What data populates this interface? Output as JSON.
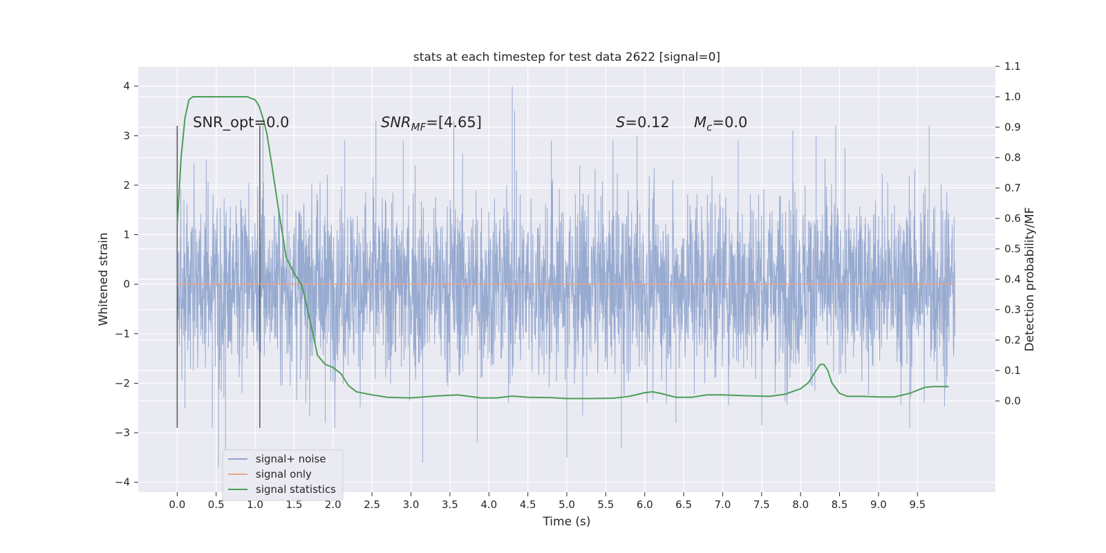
{
  "chart_data": {
    "type": "line",
    "title": "stats at each timestep for test data 2622 [signal=0]",
    "xlabel": "Time (s)",
    "ylabel_left": "Whitened strain",
    "ylabel_right": "Detection probability/MF",
    "xlim": [
      -0.5,
      10.5
    ],
    "ylim_left": [
      -4.2,
      4.4
    ],
    "ylim_right": [
      -0.3,
      1.1
    ],
    "x_ticks": [
      0.0,
      0.5,
      1.0,
      1.5,
      2.0,
      2.5,
      3.0,
      3.5,
      4.0,
      4.5,
      5.0,
      5.5,
      6.0,
      6.5,
      7.0,
      7.5,
      8.0,
      8.5,
      9.0,
      9.5
    ],
    "x_tick_labels": [
      "0.0",
      "0.5",
      "1.0",
      "1.5",
      "2.0",
      "2.5",
      "3.0",
      "3.5",
      "4.0",
      "4.5",
      "5.0",
      "5.5",
      "6.0",
      "6.5",
      "7.0",
      "7.5",
      "8.0",
      "8.5",
      "9.0",
      "9.5"
    ],
    "y_left_ticks": [
      4,
      3,
      2,
      1,
      0,
      -1,
      -2,
      -3,
      -4
    ],
    "y_left_tick_labels": [
      "4",
      "3",
      "2",
      "1",
      "0",
      "−1",
      "−2",
      "−3",
      "−4"
    ],
    "y_right_ticks": [
      1.1,
      1.0,
      0.9,
      0.8,
      0.7,
      0.6,
      0.5,
      0.4,
      0.3,
      0.2,
      0.1,
      0.0
    ],
    "y_right_tick_labels": [
      "1.1",
      "1.0",
      "0.9",
      "0.8",
      "0.7",
      "0.6",
      "0.5",
      "0.4",
      "0.3",
      "0.2",
      "0.1",
      "0.0"
    ],
    "grid": true,
    "legend_placement": "lower-left",
    "annotations": {
      "snr_opt": "SNR_opt=0.0",
      "snr_mf_base": "SNR",
      "snr_mf_sub": "MF",
      "snr_mf_value": "=[4.65]",
      "s_label": "S",
      "s_value": "=0.12",
      "mc_base": "M",
      "mc_sub": "c",
      "mc_value": "=0.0"
    },
    "markers": {
      "x": [
        0.0,
        1.06
      ],
      "y_range": [
        -2.9,
        3.2
      ]
    },
    "series": [
      {
        "name": "signal+ noise",
        "color": "#8ea3cc",
        "axis": "left",
        "x_range": [
          0.0,
          9.98
        ],
        "approx_envelope": [
          -2.0,
          2.0
        ],
        "spikes_x": [
          0.1,
          0.45,
          0.53,
          0.62,
          1.1,
          1.65,
          1.9,
          2.15,
          2.55,
          2.9,
          3.15,
          3.55,
          3.85,
          4.3,
          4.33,
          4.8,
          5.0,
          5.7,
          5.9,
          6.4,
          7.2,
          7.9,
          8.2,
          8.45,
          9.4,
          9.65
        ],
        "spikes_y": [
          -2.5,
          -2.9,
          -3.7,
          -3.4,
          3.2,
          -2.4,
          -2.8,
          2.9,
          3.3,
          2.9,
          -3.6,
          3.3,
          -3.2,
          4.0,
          3.5,
          2.9,
          -3.5,
          -3.3,
          3.0,
          -2.8,
          2.9,
          3.1,
          3.0,
          3.2,
          -2.9,
          3.2
        ]
      },
      {
        "name": "signal only",
        "color": "#e8a58c",
        "axis": "left",
        "x": [
          0.0,
          9.98
        ],
        "y": [
          0.0,
          0.0
        ]
      },
      {
        "name": "signal statistics",
        "color": "#4a9e55",
        "axis": "right",
        "x": [
          0.0,
          0.05,
          0.1,
          0.15,
          0.2,
          0.3,
          0.5,
          0.7,
          0.9,
          1.0,
          1.05,
          1.1,
          1.15,
          1.2,
          1.3,
          1.4,
          1.5,
          1.6,
          1.7,
          1.8,
          1.9,
          2.0,
          2.1,
          2.2,
          2.3,
          2.5,
          2.7,
          3.0,
          3.3,
          3.6,
          3.9,
          4.1,
          4.3,
          4.5,
          4.8,
          5.0,
          5.3,
          5.6,
          5.8,
          6.0,
          6.1,
          6.2,
          6.4,
          6.6,
          6.8,
          7.0,
          7.3,
          7.6,
          7.8,
          8.0,
          8.1,
          8.2,
          8.25,
          8.3,
          8.35,
          8.4,
          8.5,
          8.6,
          8.8,
          9.0,
          9.2,
          9.4,
          9.5,
          9.6,
          9.7,
          9.9
        ],
        "y": [
          0.58,
          0.8,
          0.93,
          0.99,
          1.0,
          1.0,
          1.0,
          1.0,
          1.0,
          0.99,
          0.97,
          0.93,
          0.88,
          0.8,
          0.63,
          0.47,
          0.42,
          0.38,
          0.27,
          0.15,
          0.12,
          0.11,
          0.09,
          0.05,
          0.03,
          0.02,
          0.012,
          0.01,
          0.016,
          0.02,
          0.01,
          0.01,
          0.016,
          0.012,
          0.011,
          0.008,
          0.008,
          0.009,
          0.015,
          0.027,
          0.03,
          0.025,
          0.012,
          0.012,
          0.02,
          0.02,
          0.017,
          0.015,
          0.022,
          0.04,
          0.06,
          0.1,
          0.12,
          0.12,
          0.1,
          0.06,
          0.025,
          0.015,
          0.015,
          0.013,
          0.013,
          0.025,
          0.035,
          0.045,
          0.047,
          0.047
        ]
      }
    ]
  }
}
